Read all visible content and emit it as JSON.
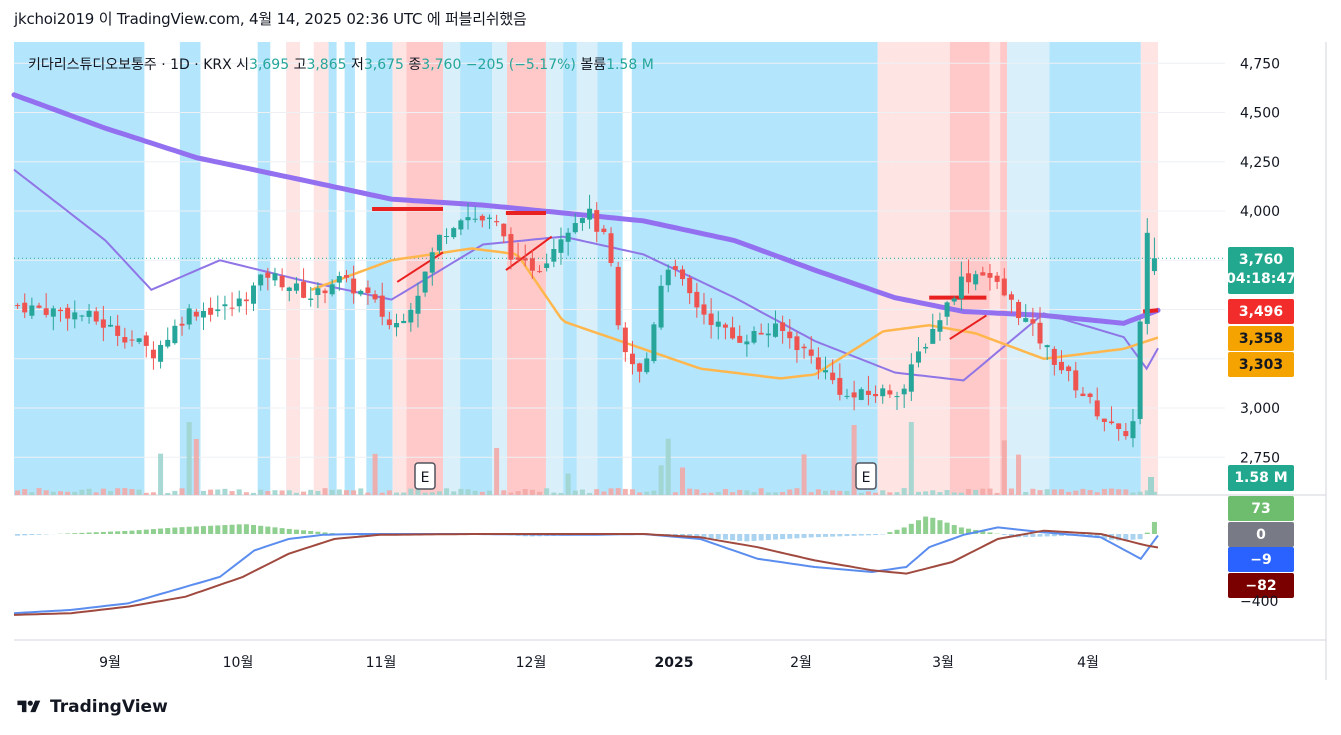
{
  "header": {
    "publish_line": "jkchoi2019 이 TradingView.com, 4월 14, 2025 02:36 UTC 에 퍼블리쉬했음"
  },
  "legend": {
    "symbol": "키다리스튜디오보통주 · 1D · KRX",
    "open_label": "시",
    "open": "3,695",
    "high_label": "고",
    "high": "3,865",
    "low_label": "저",
    "low": "3,675",
    "close_label": "종",
    "close": "3,760",
    "change": "−205 (−5.17%)",
    "volume_label": "볼륨",
    "volume": "1.58 M"
  },
  "price_axis": {
    "ticks": [
      "4,750",
      "4,500",
      "4,250",
      "4,000",
      "3,750",
      "3,500",
      "3,250",
      "3,000",
      "2,750"
    ]
  },
  "time_axis": {
    "ticks": [
      "9월",
      "10월",
      "11월",
      "12월",
      "2025",
      "2월",
      "3월",
      "4월"
    ]
  },
  "badges": {
    "last_price": "3,760",
    "countdown": "04:18:47",
    "ma_red": "3,496",
    "ma_orange": "3,358",
    "ma_orange2": "3,303",
    "volume": "1.58 M",
    "hist": "73",
    "zero": "0",
    "macd": "−9",
    "signal": "−82",
    "lower_tick": "−400"
  },
  "earnings_markers": [
    "E",
    "E"
  ],
  "colors": {
    "up": "#26a69a",
    "down": "#ef5350",
    "ma_long": "#9370f0",
    "ma_mid": "#8f75e6",
    "ma_orange": "#ffb74d",
    "ma_red": "#e82020",
    "bg_blue": "#b3e5fc",
    "bg_pink": "#ffc9c9",
    "bg_lightpink": "#ffe4e4",
    "bg_lightblue": "#d9f0fb",
    "badge_green": "#22a88f",
    "badge_red": "#f22b2b",
    "badge_orange": "#f4a300",
    "macd_blue": "#5b8def",
    "signal_brown": "#a04a3f",
    "hist_green": "#8fcf8f"
  },
  "footer": {
    "brand": "TradingView"
  },
  "chart_data": {
    "type": "candlestick",
    "title": "키다리스튜디오보통주 · 1D · KRX",
    "ylim": [
      2600,
      4850
    ],
    "x_ticks": [
      "9월",
      "10월",
      "11월",
      "12월",
      "2025",
      "2월",
      "3월",
      "4월"
    ],
    "last": {
      "open": 3695,
      "high": 3865,
      "low": 3675,
      "close": 3760,
      "change": -205,
      "change_pct": -5.17,
      "volume": "1.58M"
    },
    "moving_averages": [
      {
        "color": "purple-thick",
        "last": 3496,
        "approx": [
          [
            0,
            4590
          ],
          [
            0.08,
            4420
          ],
          [
            0.16,
            4270
          ],
          [
            0.25,
            4160
          ],
          [
            0.33,
            4060
          ],
          [
            0.41,
            4030
          ],
          [
            0.48,
            3990
          ],
          [
            0.55,
            3950
          ],
          [
            0.63,
            3850
          ],
          [
            0.7,
            3700
          ],
          [
            0.77,
            3560
          ],
          [
            0.83,
            3490
          ],
          [
            0.9,
            3470
          ],
          [
            0.97,
            3430
          ],
          [
            1.0,
            3496
          ]
        ]
      },
      {
        "color": "purple-thin",
        "last": 3303,
        "approx": [
          [
            0,
            4210
          ],
          [
            0.08,
            3850
          ],
          [
            0.12,
            3600
          ],
          [
            0.18,
            3750
          ],
          [
            0.25,
            3650
          ],
          [
            0.33,
            3550
          ],
          [
            0.41,
            3830
          ],
          [
            0.48,
            3870
          ],
          [
            0.55,
            3780
          ],
          [
            0.63,
            3560
          ],
          [
            0.7,
            3340
          ],
          [
            0.77,
            3180
          ],
          [
            0.83,
            3140
          ],
          [
            0.9,
            3480
          ],
          [
            0.97,
            3360
          ],
          [
            0.99,
            3200
          ],
          [
            1.0,
            3303
          ]
        ]
      },
      {
        "color": "orange",
        "last": 3358,
        "approx": [
          [
            0.26,
            3600
          ],
          [
            0.33,
            3750
          ],
          [
            0.4,
            3810
          ],
          [
            0.44,
            3780
          ],
          [
            0.48,
            3440
          ],
          [
            0.6,
            3200
          ],
          [
            0.67,
            3150
          ],
          [
            0.7,
            3170
          ],
          [
            0.76,
            3390
          ],
          [
            0.8,
            3420
          ],
          [
            0.84,
            3380
          ],
          [
            0.9,
            3250
          ],
          [
            0.97,
            3300
          ],
          [
            1.0,
            3358
          ]
        ]
      }
    ],
    "volume_last": "1.58M",
    "macd": {
      "hist": 73,
      "macd": -9,
      "signal": -82,
      "lower_tick": -400
    }
  }
}
